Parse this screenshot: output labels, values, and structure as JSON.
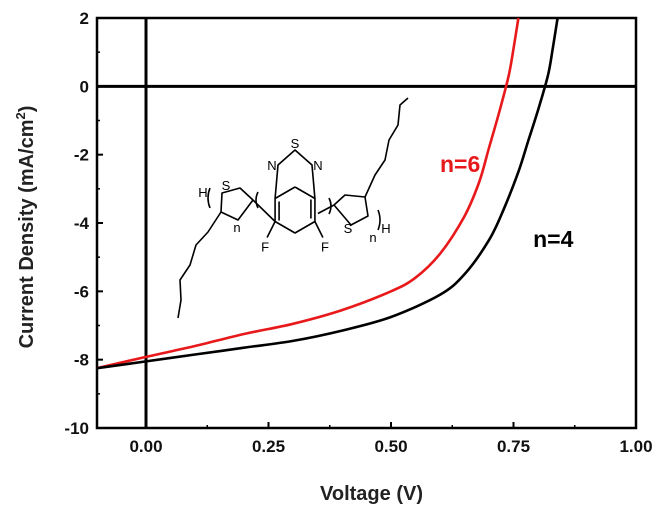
{
  "chart_data": {
    "type": "line",
    "xlabel": "Voltage (V)",
    "ylabel_main": "Current Density (mA/cm",
    "ylabel_sup": "2",
    "ylabel_end": ")",
    "xlim": [
      -0.1,
      1.0
    ],
    "ylim": [
      -10,
      2
    ],
    "xticks": [
      0.0,
      0.25,
      0.5,
      0.75,
      1.0
    ],
    "xtick_labels": [
      "0.00",
      "0.25",
      "0.50",
      "0.75",
      "1.00"
    ],
    "yticks": [
      -10,
      -8,
      -6,
      -4,
      -2,
      0,
      2
    ],
    "ytick_labels": [
      "-10",
      "-8",
      "-6",
      "-4",
      "-2",
      "0",
      "2"
    ],
    "grid": false,
    "reference_lines": {
      "x": 0,
      "y": 0
    },
    "series": [
      {
        "name": "n=6",
        "color": "#e8191b",
        "x": [
          -0.1,
          0.0,
          0.1,
          0.2,
          0.3,
          0.4,
          0.5,
          0.55,
          0.6,
          0.65,
          0.68,
          0.7,
          0.72,
          0.74,
          0.75,
          0.76
        ],
        "y": [
          -8.25,
          -7.92,
          -7.6,
          -7.25,
          -6.95,
          -6.55,
          -6.0,
          -5.6,
          -4.9,
          -3.8,
          -2.8,
          -1.8,
          -0.8,
          0.3,
          1.1,
          2.0
        ]
      },
      {
        "name": "n=4",
        "color": "#000000",
        "x": [
          -0.1,
          0.0,
          0.1,
          0.2,
          0.3,
          0.4,
          0.5,
          0.6,
          0.65,
          0.7,
          0.73,
          0.76,
          0.78,
          0.8,
          0.82,
          0.83,
          0.84
        ],
        "y": [
          -8.25,
          -8.05,
          -7.85,
          -7.65,
          -7.45,
          -7.15,
          -6.75,
          -6.1,
          -5.5,
          -4.5,
          -3.6,
          -2.5,
          -1.6,
          -0.7,
          0.3,
          1.1,
          2.0
        ]
      }
    ],
    "annotations": [
      {
        "text": "n=6",
        "color": "#e8191b",
        "x": 0.6,
        "y": -2.5
      },
      {
        "text": "n=4",
        "color": "#000000",
        "x": 0.79,
        "y": -4.7
      }
    ],
    "structure_labels": [
      "S",
      "N",
      "N",
      "S",
      "S",
      "F",
      "F",
      "H",
      "H",
      "n",
      "n"
    ]
  }
}
